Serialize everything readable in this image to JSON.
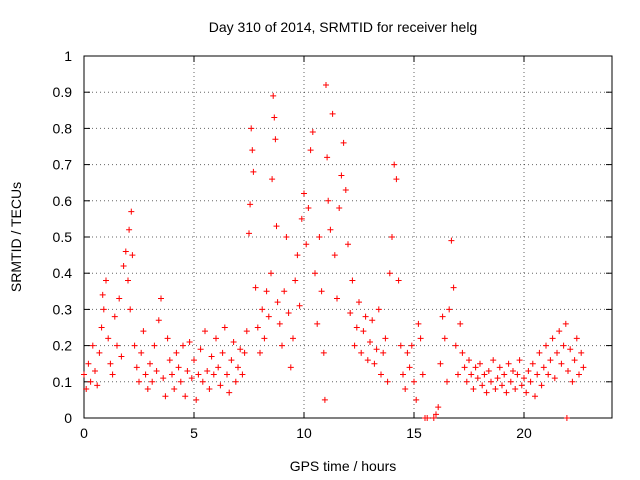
{
  "chart_data": {
    "type": "scatter",
    "title": "Day 310 of 2014, SRMTID for receiver helg",
    "xlabel": "GPS time / hours",
    "ylabel": "SRMTID / TECUs",
    "xlim": [
      0,
      24
    ],
    "ylim": [
      0,
      1
    ],
    "x_ticks": [
      0,
      5,
      10,
      15,
      20
    ],
    "x_tick_labels": [
      "0",
      "5",
      "10",
      "15",
      "20"
    ],
    "y_ticks": [
      0,
      0.1,
      0.2,
      0.3,
      0.4,
      0.5,
      0.6,
      0.7,
      0.8,
      0.9,
      1
    ],
    "y_tick_labels": [
      "0",
      "0.1",
      "0.2",
      "0.3",
      "0.4",
      "0.5",
      "0.6",
      "0.7",
      "0.8",
      "0.9",
      "1"
    ],
    "grid": true,
    "marker": "+",
    "color": "#ff0000",
    "series": [
      {
        "name": "SRMTID",
        "points": [
          [
            0.0,
            0.12
          ],
          [
            0.1,
            0.08
          ],
          [
            0.2,
            0.15
          ],
          [
            0.3,
            0.1
          ],
          [
            0.4,
            0.2
          ],
          [
            0.5,
            0.13
          ],
          [
            0.6,
            0.09
          ],
          [
            0.7,
            0.18
          ],
          [
            0.8,
            0.25
          ],
          [
            0.85,
            0.34
          ],
          [
            0.9,
            0.3
          ],
          [
            1.0,
            0.38
          ],
          [
            1.1,
            0.22
          ],
          [
            1.2,
            0.15
          ],
          [
            1.3,
            0.12
          ],
          [
            1.4,
            0.28
          ],
          [
            1.5,
            0.2
          ],
          [
            1.6,
            0.33
          ],
          [
            1.7,
            0.17
          ],
          [
            1.8,
            0.42
          ],
          [
            1.9,
            0.46
          ],
          [
            2.0,
            0.38
          ],
          [
            2.05,
            0.52
          ],
          [
            2.1,
            0.3
          ],
          [
            2.15,
            0.57
          ],
          [
            2.2,
            0.45
          ],
          [
            2.3,
            0.2
          ],
          [
            2.4,
            0.14
          ],
          [
            2.5,
            0.1
          ],
          [
            2.6,
            0.18
          ],
          [
            2.7,
            0.24
          ],
          [
            2.8,
            0.12
          ],
          [
            2.9,
            0.08
          ],
          [
            3.0,
            0.15
          ],
          [
            3.1,
            0.1
          ],
          [
            3.2,
            0.2
          ],
          [
            3.3,
            0.13
          ],
          [
            3.4,
            0.27
          ],
          [
            3.5,
            0.33
          ],
          [
            3.6,
            0.11
          ],
          [
            3.7,
            0.06
          ],
          [
            3.8,
            0.22
          ],
          [
            3.9,
            0.16
          ],
          [
            4.0,
            0.12
          ],
          [
            4.1,
            0.08
          ],
          [
            4.2,
            0.18
          ],
          [
            4.3,
            0.14
          ],
          [
            4.4,
            0.1
          ],
          [
            4.5,
            0.2
          ],
          [
            4.6,
            0.06
          ],
          [
            4.7,
            0.13
          ],
          [
            4.8,
            0.21
          ],
          [
            4.9,
            0.11
          ],
          [
            5.0,
            0.16
          ],
          [
            5.1,
            0.05
          ],
          [
            5.2,
            0.12
          ],
          [
            5.3,
            0.19
          ],
          [
            5.4,
            0.1
          ],
          [
            5.5,
            0.24
          ],
          [
            5.6,
            0.13
          ],
          [
            5.7,
            0.08
          ],
          [
            5.8,
            0.17
          ],
          [
            5.9,
            0.12
          ],
          [
            6.0,
            0.22
          ],
          [
            6.1,
            0.14
          ],
          [
            6.2,
            0.09
          ],
          [
            6.3,
            0.18
          ],
          [
            6.4,
            0.25
          ],
          [
            6.5,
            0.12
          ],
          [
            6.6,
            0.07
          ],
          [
            6.7,
            0.16
          ],
          [
            6.8,
            0.21
          ],
          [
            6.9,
            0.1
          ],
          [
            7.0,
            0.14
          ],
          [
            7.1,
            0.19
          ],
          [
            7.2,
            0.12
          ],
          [
            7.3,
            0.18
          ],
          [
            7.4,
            0.24
          ],
          [
            7.5,
            0.51
          ],
          [
            7.55,
            0.59
          ],
          [
            7.6,
            0.8
          ],
          [
            7.65,
            0.74
          ],
          [
            7.7,
            0.68
          ],
          [
            7.8,
            0.36
          ],
          [
            7.9,
            0.25
          ],
          [
            8.0,
            0.18
          ],
          [
            8.1,
            0.3
          ],
          [
            8.2,
            0.22
          ],
          [
            8.3,
            0.35
          ],
          [
            8.4,
            0.28
          ],
          [
            8.5,
            0.4
          ],
          [
            8.55,
            0.66
          ],
          [
            8.6,
            0.89
          ],
          [
            8.65,
            0.83
          ],
          [
            8.7,
            0.77
          ],
          [
            8.75,
            0.53
          ],
          [
            8.8,
            0.32
          ],
          [
            8.9,
            0.26
          ],
          [
            9.0,
            0.2
          ],
          [
            9.1,
            0.35
          ],
          [
            9.2,
            0.5
          ],
          [
            9.3,
            0.29
          ],
          [
            9.4,
            0.14
          ],
          [
            9.5,
            0.22
          ],
          [
            9.6,
            0.38
          ],
          [
            9.7,
            0.45
          ],
          [
            9.8,
            0.31
          ],
          [
            9.9,
            0.55
          ],
          [
            10.0,
            0.62
          ],
          [
            10.1,
            0.48
          ],
          [
            10.2,
            0.58
          ],
          [
            10.3,
            0.74
          ],
          [
            10.4,
            0.79
          ],
          [
            10.5,
            0.4
          ],
          [
            10.6,
            0.26
          ],
          [
            10.7,
            0.5
          ],
          [
            10.8,
            0.35
          ],
          [
            10.9,
            0.18
          ],
          [
            10.95,
            0.05
          ],
          [
            11.0,
            0.92
          ],
          [
            11.05,
            0.72
          ],
          [
            11.1,
            0.6
          ],
          [
            11.2,
            0.52
          ],
          [
            11.3,
            0.84
          ],
          [
            11.4,
            0.45
          ],
          [
            11.5,
            0.33
          ],
          [
            11.6,
            0.58
          ],
          [
            11.7,
            0.67
          ],
          [
            11.8,
            0.76
          ],
          [
            11.9,
            0.63
          ],
          [
            12.0,
            0.48
          ],
          [
            12.1,
            0.29
          ],
          [
            12.2,
            0.38
          ],
          [
            12.3,
            0.2
          ],
          [
            12.4,
            0.25
          ],
          [
            12.5,
            0.32
          ],
          [
            12.6,
            0.18
          ],
          [
            12.7,
            0.24
          ],
          [
            12.8,
            0.28
          ],
          [
            12.9,
            0.16
          ],
          [
            13.0,
            0.21
          ],
          [
            13.1,
            0.27
          ],
          [
            13.2,
            0.15
          ],
          [
            13.3,
            0.19
          ],
          [
            13.4,
            0.3
          ],
          [
            13.5,
            0.12
          ],
          [
            13.6,
            0.18
          ],
          [
            13.7,
            0.22
          ],
          [
            13.8,
            0.1
          ],
          [
            13.9,
            0.4
          ],
          [
            14.0,
            0.5
          ],
          [
            14.1,
            0.7
          ],
          [
            14.2,
            0.66
          ],
          [
            14.3,
            0.38
          ],
          [
            14.4,
            0.2
          ],
          [
            14.5,
            0.12
          ],
          [
            14.6,
            0.08
          ],
          [
            14.7,
            0.18
          ],
          [
            14.8,
            0.14
          ],
          [
            14.9,
            0.2
          ],
          [
            15.0,
            0.1
          ],
          [
            15.1,
            0.05
          ],
          [
            15.2,
            0.26
          ],
          [
            15.3,
            0.22
          ],
          [
            15.4,
            0.12
          ],
          [
            15.5,
            0.0
          ],
          [
            15.6,
            0.0
          ],
          [
            15.9,
            0.0
          ],
          [
            16.0,
            0.01
          ],
          [
            16.1,
            0.03
          ],
          [
            16.2,
            0.15
          ],
          [
            16.3,
            0.28
          ],
          [
            16.4,
            0.22
          ],
          [
            16.5,
            0.1
          ],
          [
            16.6,
            0.3
          ],
          [
            16.7,
            0.49
          ],
          [
            16.8,
            0.36
          ],
          [
            16.9,
            0.2
          ],
          [
            17.0,
            0.12
          ],
          [
            17.1,
            0.26
          ],
          [
            17.2,
            0.18
          ],
          [
            17.3,
            0.14
          ],
          [
            17.4,
            0.1
          ],
          [
            17.5,
            0.16
          ],
          [
            17.6,
            0.12
          ],
          [
            17.7,
            0.08
          ],
          [
            17.8,
            0.14
          ],
          [
            17.9,
            0.11
          ],
          [
            18.0,
            0.15
          ],
          [
            18.1,
            0.09
          ],
          [
            18.2,
            0.12
          ],
          [
            18.3,
            0.07
          ],
          [
            18.4,
            0.13
          ],
          [
            18.5,
            0.1
          ],
          [
            18.6,
            0.16
          ],
          [
            18.7,
            0.08
          ],
          [
            18.8,
            0.11
          ],
          [
            18.9,
            0.14
          ],
          [
            19.0,
            0.09
          ],
          [
            19.1,
            0.12
          ],
          [
            19.2,
            0.07
          ],
          [
            19.3,
            0.15
          ],
          [
            19.4,
            0.1
          ],
          [
            19.5,
            0.13
          ],
          [
            19.6,
            0.08
          ],
          [
            19.7,
            0.12
          ],
          [
            19.8,
            0.16
          ],
          [
            19.9,
            0.09
          ],
          [
            20.0,
            0.11
          ],
          [
            20.1,
            0.07
          ],
          [
            20.2,
            0.13
          ],
          [
            20.3,
            0.1
          ],
          [
            20.4,
            0.15
          ],
          [
            20.5,
            0.06
          ],
          [
            20.6,
            0.12
          ],
          [
            20.7,
            0.18
          ],
          [
            20.8,
            0.09
          ],
          [
            20.9,
            0.14
          ],
          [
            21.0,
            0.2
          ],
          [
            21.1,
            0.12
          ],
          [
            21.2,
            0.16
          ],
          [
            21.3,
            0.22
          ],
          [
            21.4,
            0.11
          ],
          [
            21.5,
            0.18
          ],
          [
            21.6,
            0.24
          ],
          [
            21.7,
            0.15
          ],
          [
            21.8,
            0.2
          ],
          [
            21.9,
            0.26
          ],
          [
            22.0,
            0.13
          ],
          [
            22.1,
            0.19
          ],
          [
            22.2,
            0.1
          ],
          [
            22.3,
            0.16
          ],
          [
            22.4,
            0.22
          ],
          [
            22.5,
            0.12
          ],
          [
            22.6,
            0.18
          ],
          [
            22.7,
            0.14
          ],
          [
            21.95,
            0.0
          ]
        ]
      }
    ]
  }
}
